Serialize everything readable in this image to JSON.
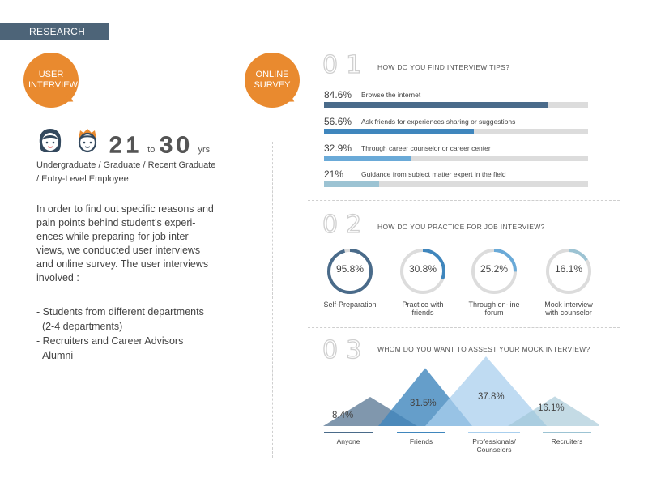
{
  "header": {
    "tag": "RESEARCH"
  },
  "bubbles": {
    "user_interview": [
      "USER",
      "INTERVIEW"
    ],
    "online_survey": [
      "ONLINE",
      "SURVEY"
    ]
  },
  "demographics": {
    "age_from": "21",
    "age_to_word": "to",
    "age_to": "30",
    "age_unit": "yrs",
    "education": [
      "Undergraduate / Graduate / Recent Graduate",
      "/ Entry-Level Employee"
    ]
  },
  "description": {
    "lines": [
      "In order to find out specific reasons and",
      "pain points behind student’s experi-",
      "ences while preparing for job inter-",
      "views, we conducted user interviews",
      "and online survey. The user interviews",
      "involved :"
    ],
    "list": [
      "- Students from different departments",
      "  (2-4 departments)",
      "- Recruiters and Career Advisors",
      "- Alumni"
    ]
  },
  "q1": {
    "number": "01",
    "title": "HOW DO YOU FIND INTERVIEW TIPS?",
    "items": [
      {
        "pct_label": "84.6%",
        "value": 84.6,
        "label": "Browse the internet",
        "color": "#4a6b8a"
      },
      {
        "pct_label": "56.6%",
        "value": 56.6,
        "label": "Ask friends for experiences sharing or suggestions",
        "color": "#3f86bd"
      },
      {
        "pct_label": "32.9%",
        "value": 32.9,
        "label": "Through career counselor or career center",
        "color": "#6aaad8"
      },
      {
        "pct_label": "21%",
        "value": 21,
        "label": "Guidance from subject matter expert in the field",
        "color": "#9cc3d3"
      }
    ]
  },
  "q2": {
    "number": "02",
    "title": "HOW DO YOU PRACTICE FOR JOB INTERVIEW?",
    "items": [
      {
        "pct_label": "95.8%",
        "value": 95.8,
        "label": [
          "Self-Preparation"
        ],
        "color": "#4a6b8a"
      },
      {
        "pct_label": "30.8%",
        "value": 30.8,
        "label": [
          "Practice with",
          "friends"
        ],
        "color": "#3f86bd"
      },
      {
        "pct_label": "25.2%",
        "value": 25.2,
        "label": [
          "Through on-line",
          "forum"
        ],
        "color": "#6aaad8"
      },
      {
        "pct_label": "16.1%",
        "value": 16.1,
        "label": [
          "Mock interview",
          "with counselor"
        ],
        "color": "#9cc3d3"
      }
    ]
  },
  "q3": {
    "number": "03",
    "title": "WHOM DO YOU WANT TO ASSEST YOUR MOCK INTERVIEW?",
    "items": [
      {
        "pct_label": "8.4%",
        "value": 8.4,
        "label": [
          "Anyone"
        ],
        "color": "#4a6b8a"
      },
      {
        "pct_label": "31.5%",
        "value": 31.5,
        "label": [
          "Friends"
        ],
        "color": "#3f86bd"
      },
      {
        "pct_label": "37.8%",
        "value": 37.8,
        "label": [
          "Professionals/",
          "Counselors"
        ],
        "color": "#a9cfee"
      },
      {
        "pct_label": "16.1%",
        "value": 16.1,
        "label": [
          "Recruiters"
        ],
        "color": "#9cc3d3"
      }
    ]
  },
  "icons": [
    "female-avatar-icon",
    "male-avatar-icon"
  ],
  "colors": {
    "accent": "#e98a2f",
    "tag_bg": "#4d6478"
  }
}
